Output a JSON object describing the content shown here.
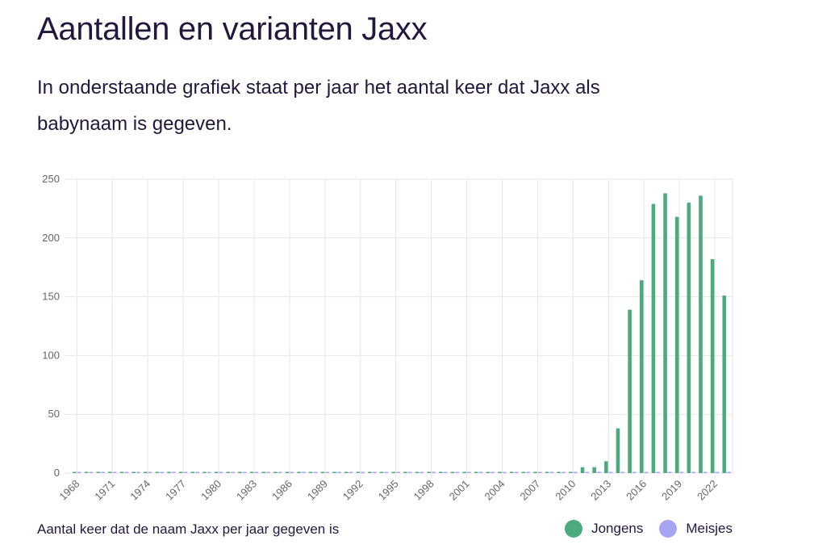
{
  "page": {
    "title": "Aantallen en varianten Jaxx",
    "intro": "In onderstaande grafiek staat per jaar het aantal keer dat Jaxx als babynaam is gegeven."
  },
  "chart_data": {
    "type": "bar",
    "title": "",
    "caption": "Aantal keer dat de naam Jaxx per jaar gegeven is",
    "xlabel": "",
    "ylabel": "",
    "ylim": [
      0,
      250
    ],
    "yticks": [
      0,
      50,
      100,
      150,
      200,
      250
    ],
    "categories": [
      1968,
      1969,
      1970,
      1971,
      1972,
      1973,
      1974,
      1975,
      1976,
      1977,
      1978,
      1979,
      1980,
      1981,
      1982,
      1983,
      1984,
      1985,
      1986,
      1987,
      1988,
      1989,
      1990,
      1991,
      1992,
      1993,
      1994,
      1995,
      1996,
      1997,
      1998,
      1999,
      2000,
      2001,
      2002,
      2003,
      2004,
      2005,
      2006,
      2007,
      2008,
      2009,
      2010,
      2011,
      2012,
      2013,
      2014,
      2015,
      2016,
      2017,
      2018,
      2019,
      2020,
      2021,
      2022,
      2023
    ],
    "xtick_labels": [
      1968,
      1971,
      1974,
      1977,
      1980,
      1983,
      1986,
      1989,
      1992,
      1995,
      1998,
      2001,
      2004,
      2007,
      2010,
      2013,
      2016,
      2019,
      2022
    ],
    "series": [
      {
        "name": "Jongens",
        "color": "#4caa7e",
        "values": [
          0,
          0,
          0,
          0,
          0,
          0,
          0,
          0,
          0,
          0,
          0,
          0,
          0,
          0,
          0,
          0,
          0,
          0,
          0,
          0,
          0,
          0,
          0,
          0,
          0,
          0,
          0,
          0,
          0,
          0,
          0,
          0,
          0,
          0,
          0,
          0,
          0,
          0,
          0,
          0,
          0,
          0,
          0,
          5,
          5,
          10,
          38,
          139,
          164,
          229,
          238,
          218,
          230,
          236,
          182,
          151
        ]
      },
      {
        "name": "Meisjes",
        "color": "#a8a4f4",
        "values": [
          0,
          0,
          0,
          0,
          0,
          0,
          0,
          0,
          0,
          0,
          0,
          0,
          0,
          0,
          0,
          0,
          0,
          0,
          0,
          0,
          0,
          0,
          0,
          0,
          0,
          0,
          0,
          0,
          0,
          0,
          0,
          0,
          0,
          0,
          0,
          0,
          0,
          0,
          0,
          0,
          0,
          0,
          0,
          0,
          0,
          0,
          0,
          0,
          0,
          0,
          0,
          0,
          0,
          0,
          0,
          0
        ]
      }
    ],
    "grid": true,
    "legend": "bottom-right"
  }
}
